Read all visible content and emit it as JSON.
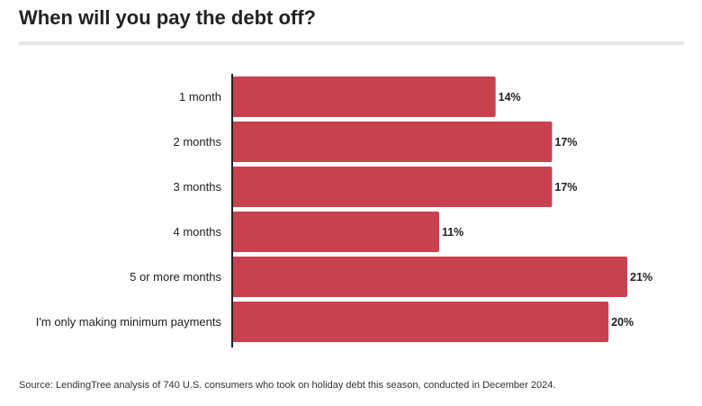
{
  "title": "When will you pay the debt off?",
  "source": "Source: LendingTree analysis of 740 U.S. consumers who took on holiday debt this season, conducted in December 2024.",
  "chart_data": {
    "type": "bar",
    "orientation": "horizontal",
    "categories": [
      "1 month",
      "2 months",
      "3 months",
      "4 months",
      "5 or more months",
      "I'm only making minimum payments"
    ],
    "values": [
      14,
      17,
      17,
      11,
      21,
      20
    ],
    "value_labels": [
      "14%",
      "17%",
      "17%",
      "11%",
      "21%",
      "20%"
    ],
    "unit": "%",
    "title": "When will you pay the debt off?",
    "xlabel": "",
    "ylabel": "",
    "xlim": [
      0,
      21
    ],
    "grid": false,
    "bar_color": "#c8414f"
  }
}
